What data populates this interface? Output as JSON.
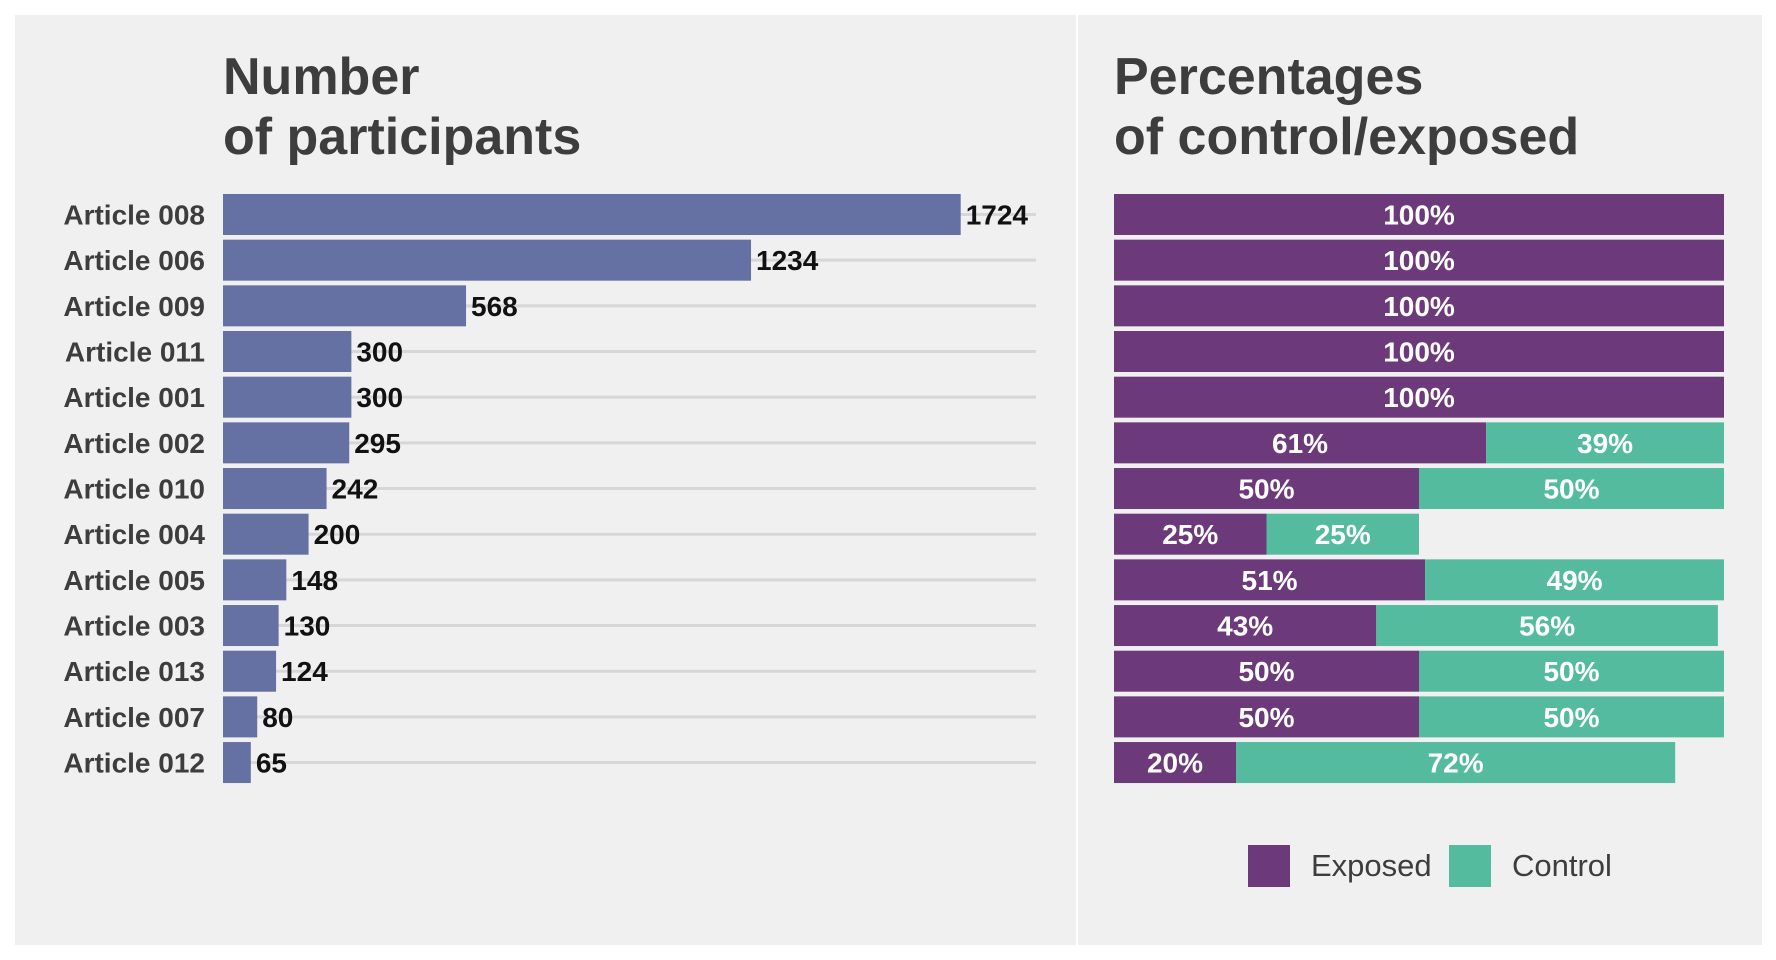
{
  "colors": {
    "background": "#ffffff",
    "panel": "#f0f0f0",
    "participants_bar": "#6570a3",
    "exposed": "#6c3a7a",
    "control": "#55bb9f",
    "gridline": "#d7d7d7",
    "title_text": "#3d3d3d",
    "label_text": "#222222"
  },
  "chart_data": [
    {
      "type": "bar",
      "orientation": "horizontal",
      "title": "Number\nof participants",
      "title_lines": [
        "Number",
        "of participants"
      ],
      "categories": [
        "Article 008",
        "Article 006",
        "Article 009",
        "Article 011",
        "Article 001",
        "Article 002",
        "Article 010",
        "Article 004",
        "Article 005",
        "Article 003",
        "Article 013",
        "Article 007",
        "Article 012"
      ],
      "values": [
        1724,
        1234,
        568,
        300,
        300,
        295,
        242,
        200,
        148,
        130,
        124,
        80,
        65
      ],
      "value_labels": [
        "1724",
        "1234",
        "568",
        "300",
        "300",
        "295",
        "242",
        "200",
        "148",
        "130",
        "124",
        "80",
        "65"
      ],
      "xlim": [
        0,
        1900
      ],
      "grid": "horizontal gridlines",
      "legend": "none"
    },
    {
      "type": "bar",
      "orientation": "horizontal",
      "stacked": true,
      "title": "Percentages\nof control/exposed",
      "title_lines": [
        "Percentages",
        "of control/exposed"
      ],
      "categories": [
        "Article 008",
        "Article 006",
        "Article 009",
        "Article 011",
        "Article 001",
        "Article 002",
        "Article 010",
        "Article 004",
        "Article 005",
        "Article 003",
        "Article 013",
        "Article 007",
        "Article 012"
      ],
      "series": [
        {
          "name": "Exposed",
          "values": [
            100,
            100,
            100,
            100,
            100,
            61,
            50,
            25,
            51,
            43,
            50,
            50,
            20
          ],
          "labels": [
            "100%",
            "100%",
            "100%",
            "100%",
            "100%",
            "61%",
            "50%",
            "25%",
            "51%",
            "43%",
            "50%",
            "50%",
            "20%"
          ]
        },
        {
          "name": "Control",
          "values": [
            0,
            0,
            0,
            0,
            0,
            39,
            50,
            25,
            49,
            56,
            50,
            50,
            72
          ],
          "labels": [
            "",
            "",
            "",
            "",
            "",
            "39%",
            "50%",
            "25%",
            "49%",
            "56%",
            "50%",
            "50%",
            "72%"
          ]
        }
      ],
      "xlim": [
        0,
        100
      ],
      "legend": "bottom"
    }
  ]
}
